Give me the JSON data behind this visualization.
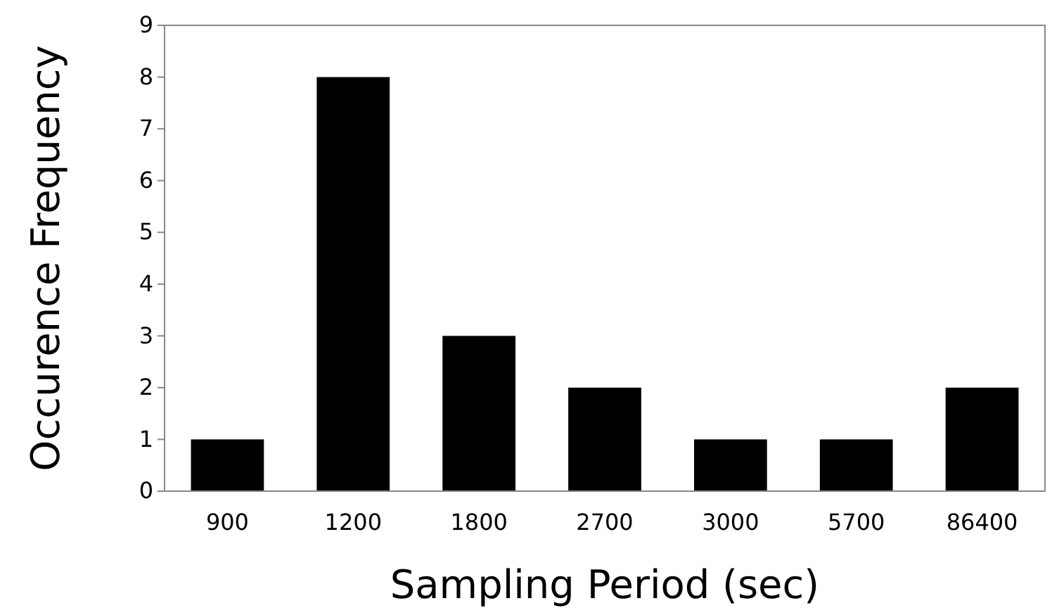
{
  "chart_data": {
    "type": "bar",
    "xlabel": "Sampling Period (sec)",
    "ylabel": "Occurence Frequency",
    "categories": [
      "900",
      "1200",
      "1800",
      "2700",
      "3000",
      "5700",
      "86400"
    ],
    "values": [
      1,
      8,
      3,
      2,
      1,
      1,
      2
    ],
    "color": "#000000",
    "ylim": [
      0,
      9
    ],
    "yticks": [
      0,
      1,
      2,
      3,
      4,
      5,
      6,
      7,
      8,
      9
    ],
    "grid": false
  }
}
